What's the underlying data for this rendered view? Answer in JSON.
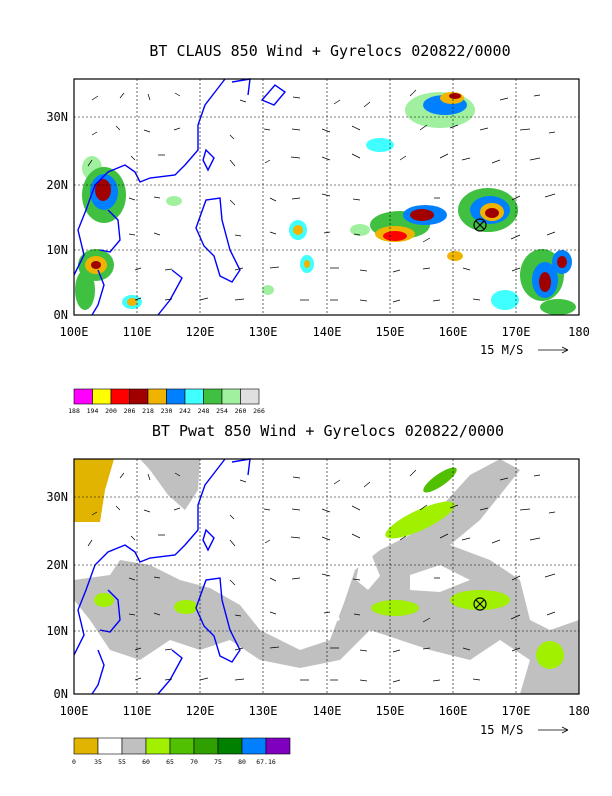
{
  "top": {
    "title": "BT CLAUS 850 Wind + Gyrelocs 020822/0000",
    "x_ticks": [
      "100E",
      "110E",
      "120E",
      "130E",
      "140E",
      "150E",
      "160E",
      "170E",
      "180"
    ],
    "y_ticks": [
      "0N",
      "10N",
      "20N",
      "30N"
    ],
    "reference_vector": "15 M/S",
    "colorbar": {
      "colors": [
        "#ff00ff",
        "#ffff00",
        "#ff0000",
        "#a00000",
        "#f0b400",
        "#0080ff",
        "#40ffff",
        "#40c040",
        "#a0f0a0",
        "#e0e0e0"
      ],
      "labels": [
        "188",
        "194",
        "200",
        "206",
        "218",
        "230",
        "242",
        "248",
        "254",
        "260",
        "266"
      ]
    }
  },
  "bottom": {
    "title": "BT Pwat 850 Wind + Gyrelocs 020822/0000",
    "x_ticks": [
      "100E",
      "110E",
      "120E",
      "130E",
      "140E",
      "150E",
      "160E",
      "170E",
      "180"
    ],
    "y_ticks": [
      "0N",
      "10N",
      "20N",
      "30N"
    ],
    "reference_vector": "15 M/S",
    "colorbar": {
      "colors": [
        "#e0b400",
        "#ffffff",
        "#c0c0c0",
        "#a0f000",
        "#50c000",
        "#30a000",
        "#008000",
        "#0080ff",
        "#8000c0"
      ],
      "labels": [
        "0",
        "35",
        "55",
        "60",
        "65",
        "70",
        "75",
        "80",
        "67.16"
      ]
    }
  },
  "colors": {
    "coastline": "#0000ff",
    "axis": "#000000",
    "grid": "#000000"
  }
}
